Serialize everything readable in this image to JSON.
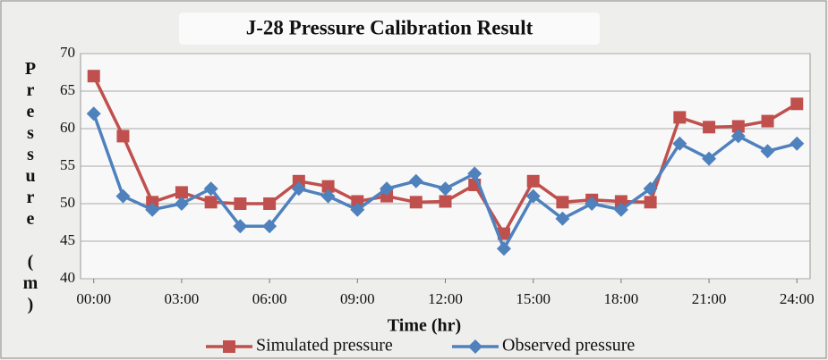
{
  "chart_data": {
    "type": "line",
    "title": "J-28 Pressure  Calibration Result",
    "x_label": "Time (hr)",
    "y_label": "Pressure (m)",
    "x": [
      0,
      1,
      2,
      3,
      4,
      5,
      6,
      7,
      8,
      9,
      10,
      11,
      12,
      13,
      14,
      15,
      16,
      17,
      18,
      19,
      20,
      21,
      22,
      23,
      24
    ],
    "series": [
      {
        "name": "Simulated pressure",
        "color": "#c0504d",
        "marker": "square",
        "values": [
          67,
          59,
          50.2,
          51.5,
          50.2,
          50,
          50,
          53,
          52.3,
          50.3,
          51,
          50.2,
          50.3,
          52.5,
          46,
          53,
          50.2,
          50.5,
          50.3,
          50.2,
          61.5,
          60.2,
          60.3,
          61,
          63.3
        ]
      },
      {
        "name": "Observed pressure",
        "color": "#4f81bd",
        "marker": "diamond",
        "values": [
          62,
          51,
          49.2,
          50,
          52,
          47,
          47,
          52,
          51,
          49.2,
          52,
          53,
          52,
          54,
          44,
          51,
          48,
          50,
          49.2,
          52,
          58,
          56,
          59,
          57,
          58
        ]
      }
    ],
    "xlim": [
      -0.45,
      24.45
    ],
    "xticks": [
      {
        "value": 0,
        "label": "00:00"
      },
      {
        "value": 3,
        "label": "03:00"
      },
      {
        "value": 6,
        "label": "06:00"
      },
      {
        "value": 9,
        "label": "09:00"
      },
      {
        "value": 12,
        "label": "12:00"
      },
      {
        "value": 15,
        "label": "15:00"
      },
      {
        "value": 18,
        "label": "18:00"
      },
      {
        "value": 21,
        "label": "21:00"
      },
      {
        "value": 24,
        "label": "24:00"
      }
    ],
    "ylim": [
      40,
      70
    ],
    "yticks": [
      40,
      45,
      50,
      55,
      60,
      65,
      70
    ],
    "grid": true,
    "legend": "bottom"
  }
}
